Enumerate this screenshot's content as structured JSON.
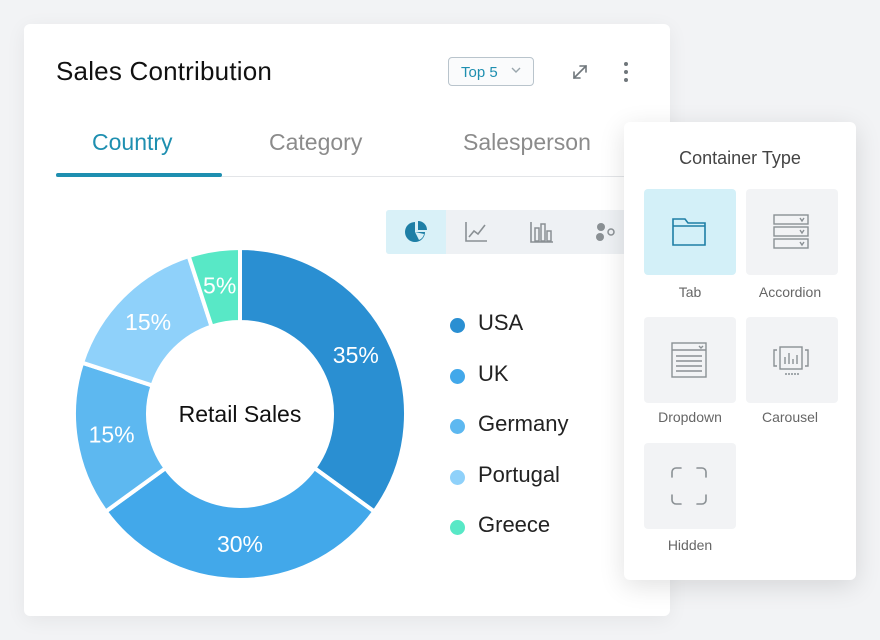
{
  "card": {
    "title": "Sales Contribution",
    "top_select": {
      "value": "Top 5"
    },
    "tabs": [
      {
        "label": "Country",
        "active": true
      },
      {
        "label": "Category",
        "active": false
      },
      {
        "label": "Salesperson",
        "active": false
      }
    ],
    "chart_types": [
      "pie-chart-icon",
      "line-chart-icon",
      "bar-chart-icon",
      "scatter-chart-icon"
    ],
    "active_chart_type": "pie-chart-icon"
  },
  "chart_data": {
    "type": "pie",
    "title": "Retail Sales",
    "center_label": "Retail Sales",
    "categories": [
      "USA",
      "UK",
      "Germany",
      "Portugal",
      "Greece"
    ],
    "values": [
      35,
      30,
      15,
      15,
      5
    ],
    "labels": [
      "35%",
      "30%",
      "15%",
      "15%",
      "5%"
    ],
    "colors": [
      "#2a8fd2",
      "#42a8ea",
      "#5db8f0",
      "#8fd1fa",
      "#58e8c6"
    ],
    "legend_position": "right"
  },
  "popover": {
    "title": "Container Type",
    "options": [
      {
        "label": "Tab",
        "icon": "tab-folder-icon",
        "selected": true
      },
      {
        "label": "Accordion",
        "icon": "accordion-icon",
        "selected": false
      },
      {
        "label": "Dropdown",
        "icon": "dropdown-icon",
        "selected": false
      },
      {
        "label": "Carousel",
        "icon": "carousel-icon",
        "selected": false
      },
      {
        "label": "Hidden",
        "icon": "hidden-frame-icon",
        "selected": false
      }
    ]
  },
  "colors": {
    "accent": "#1e8fb0",
    "tab_inactive": "#8b8b8b",
    "selected_tile": "#d3f0f8"
  }
}
